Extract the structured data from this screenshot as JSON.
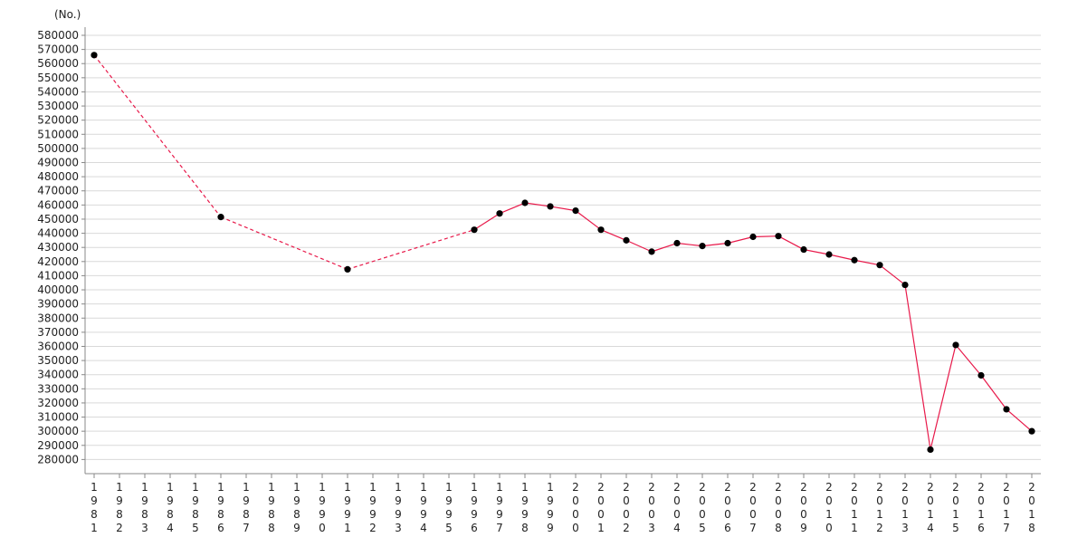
{
  "chart_data": {
    "type": "line",
    "unit_label": "(No.)",
    "title": "",
    "xlabel": "",
    "ylabel": "",
    "ylim": [
      270000,
      580000
    ],
    "ytick_step": 10000,
    "ytick_min": 280000,
    "grid": true,
    "x": [
      1981,
      1982,
      1983,
      1984,
      1985,
      1986,
      1987,
      1988,
      1989,
      1990,
      1991,
      1992,
      1993,
      1994,
      1995,
      1996,
      1997,
      1998,
      1999,
      2000,
      2001,
      2002,
      2003,
      2004,
      2005,
      2006,
      2007,
      2008,
      2009,
      2010,
      2011,
      2012,
      2013,
      2014,
      2015,
      2016,
      2017,
      2018
    ],
    "tick_labels": [
      "1981",
      "1982",
      "1983",
      "1984",
      "1985",
      "1986",
      "1987",
      "1988",
      "1989",
      "1990",
      "1991",
      "1992",
      "1993",
      "1994",
      "1995",
      "1996",
      "1997",
      "1998",
      "1999",
      "2000",
      "2001",
      "2002",
      "2003",
      "2004",
      "2005",
      "2006",
      "2007",
      "2008",
      "2009",
      "2010",
      "2011",
      "2012",
      "2013",
      "2014",
      "2015",
      "2016",
      "2017",
      "2018"
    ],
    "series": [
      {
        "color": "#e8194a",
        "points": [
          {
            "x": 1981,
            "y": 566000
          },
          {
            "x": 1986,
            "y": 451500
          },
          {
            "x": 1991,
            "y": 414500
          },
          {
            "x": 1996,
            "y": 442500
          },
          {
            "x": 1997,
            "y": 454000
          },
          {
            "x": 1998,
            "y": 461500
          },
          {
            "x": 1999,
            "y": 459000
          },
          {
            "x": 2000,
            "y": 456000
          },
          {
            "x": 2001,
            "y": 442500
          },
          {
            "x": 2002,
            "y": 435000
          },
          {
            "x": 2003,
            "y": 427000
          },
          {
            "x": 2004,
            "y": 433000
          },
          {
            "x": 2005,
            "y": 431000
          },
          {
            "x": 2006,
            "y": 433000
          },
          {
            "x": 2007,
            "y": 437500
          },
          {
            "x": 2008,
            "y": 438000
          },
          {
            "x": 2009,
            "y": 428500
          },
          {
            "x": 2010,
            "y": 425000
          },
          {
            "x": 2011,
            "y": 421000
          },
          {
            "x": 2012,
            "y": 417500
          },
          {
            "x": 2013,
            "y": 403500
          },
          {
            "x": 2014,
            "y": 287000
          },
          {
            "x": 2015,
            "y": 361000
          },
          {
            "x": 2016,
            "y": 339500
          },
          {
            "x": 2017,
            "y": 315500
          },
          {
            "x": 2018,
            "y": 300000
          }
        ]
      }
    ],
    "marker_color": "#000000",
    "grid_color": "#d9d9d9",
    "axis_color": "#888888"
  }
}
